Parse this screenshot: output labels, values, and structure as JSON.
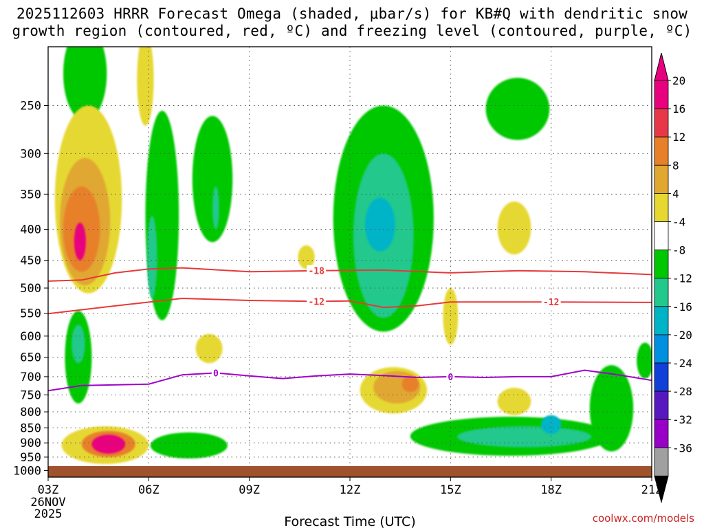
{
  "title_line1": "2025112603 HRRR Forecast Omega (shaded, μbar/s) for KB#Q with dendritic snow",
  "title_line2": "growth region (contoured, red, ºC) and freezing level (contoured, purple, ºC)",
  "credit": "coolwx.com/models",
  "chart_data": {
    "type": "heatmap",
    "title": "2025112603 HRRR Forecast Omega (shaded, μbar/s) for KB#Q with dendritic snow growth region (contoured, red, ºC) and freezing level (contoured, purple, ºC)",
    "xlabel": "Forecast Time (UTC)",
    "x_range_hours": [
      3,
      21
    ],
    "x_ticks": [
      {
        "hour": 3,
        "label": "03Z"
      },
      {
        "hour": 6,
        "label": "06Z"
      },
      {
        "hour": 9,
        "label": "09Z"
      },
      {
        "hour": 12,
        "label": "12Z"
      },
      {
        "hour": 15,
        "label": "15Z"
      },
      {
        "hour": 18,
        "label": "18Z"
      },
      {
        "hour": 21,
        "label": "21Z"
      }
    ],
    "x_date_labels": [
      "26NOV",
      "2025"
    ],
    "y_axis": "pressure (mb), log scale",
    "y_range_mb": [
      1025,
      200
    ],
    "y_ticks": [
      250,
      300,
      350,
      400,
      450,
      500,
      550,
      600,
      650,
      700,
      750,
      800,
      850,
      900,
      950,
      1000
    ],
    "colorbar": {
      "unit": "μbar/s",
      "labels": [
        "20",
        "16",
        "12",
        "8",
        "4",
        "-4",
        "-8",
        "-12",
        "-16",
        "-20",
        "-24",
        "-28",
        "-32",
        "-36"
      ],
      "levels": [
        20,
        16,
        12,
        8,
        4,
        -4,
        -8,
        -12,
        -16,
        -20,
        -24,
        -28,
        -32,
        -36
      ],
      "colors": [
        "#e8007f",
        "#e83848",
        "#e8802a",
        "#e0a830",
        "#e6d830",
        "#ffffff",
        "#00c800",
        "#22c88c",
        "#00b4c8",
        "#0090e0",
        "#1040d8",
        "#5818c0",
        "#9800c8",
        "#a0a0a0"
      ],
      "top_arrow_color": "#e8007f",
      "bottom_arrow_color": "#000000"
    },
    "omega_areas": [
      {
        "name": "rising-motion-high-left",
        "color": "#00c800",
        "center_hour": 4.1,
        "center_mb": 225,
        "width_hours": 1.3,
        "height_mb": 80
      },
      {
        "name": "rising-motion-left-mid",
        "color": "#00c800",
        "center_hour": 3.9,
        "center_mb": 660,
        "width_hours": 0.8,
        "height_mb": 230
      },
      {
        "name": "rising-motion-left-mid-core",
        "color": "#22c88c",
        "center_hour": 3.9,
        "center_mb": 620,
        "width_hours": 0.4,
        "height_mb": 90
      },
      {
        "name": "rising-motion-06z-column",
        "color": "#00c800",
        "center_hour": 6.4,
        "center_mb": 410,
        "width_hours": 1.0,
        "height_mb": 310
      },
      {
        "name": "rising-motion-06z-core",
        "color": "#22c88c",
        "center_hour": 6.1,
        "center_mb": 450,
        "width_hours": 0.3,
        "height_mb": 140
      },
      {
        "name": "rising-motion-08z",
        "color": "#00c800",
        "center_hour": 7.9,
        "center_mb": 340,
        "width_hours": 1.2,
        "height_mb": 160
      },
      {
        "name": "rising-motion-08z-core",
        "color": "#22c88c",
        "center_hour": 8.0,
        "center_mb": 370,
        "width_hours": 0.2,
        "height_mb": 60
      },
      {
        "name": "rising-motion-12z-plume",
        "color": "#00c800",
        "center_hour": 13.0,
        "center_mb": 420,
        "width_hours": 3.0,
        "height_mb": 340
      },
      {
        "name": "rising-motion-12z-core",
        "color": "#22c88c",
        "center_hour": 13.0,
        "center_mb": 430,
        "width_hours": 1.8,
        "height_mb": 260
      },
      {
        "name": "rising-motion-12z-inner",
        "color": "#00b4c8",
        "center_hour": 12.9,
        "center_mb": 395,
        "width_hours": 0.9,
        "height_mb": 80
      },
      {
        "name": "rising-motion-17z-box",
        "color": "#00c800",
        "center_hour": 17.0,
        "center_mb": 255,
        "width_hours": 1.9,
        "height_mb": 60
      },
      {
        "name": "rising-motion-low-18z",
        "color": "#00c800",
        "center_hour": 16.8,
        "center_mb": 880,
        "width_hours": 6.0,
        "height_mb": 130
      },
      {
        "name": "rising-motion-low-18z-core",
        "color": "#22c88c",
        "center_hour": 17.2,
        "center_mb": 880,
        "width_hours": 4.0,
        "height_mb": 70
      },
      {
        "name": "rising-motion-18z-inner",
        "color": "#00b4c8",
        "center_hour": 18.0,
        "center_mb": 840,
        "width_hours": 0.6,
        "height_mb": 60
      },
      {
        "name": "rising-motion-low-07z",
        "color": "#00c800",
        "center_hour": 7.2,
        "center_mb": 910,
        "width_hours": 2.3,
        "height_mb": 90
      },
      {
        "name": "rising-motion-20z",
        "color": "#00c800",
        "center_hour": 19.8,
        "center_mb": 800,
        "width_hours": 1.3,
        "height_mb": 260
      },
      {
        "name": "rising-motion-21z-edge",
        "color": "#00c800",
        "center_hour": 20.8,
        "center_mb": 660,
        "width_hours": 0.5,
        "height_mb": 90
      }
    ],
    "sinking_areas": [
      {
        "name": "sinking-left-column",
        "color": "#e6d830",
        "center_hour": 4.2,
        "center_mb": 380,
        "width_hours": 2.0,
        "height_mb": 260
      },
      {
        "name": "sinking-left-column-mid",
        "color": "#e0a830",
        "center_hour": 4.1,
        "center_mb": 400,
        "width_hours": 1.5,
        "height_mb": 190
      },
      {
        "name": "sinking-left-column-strong",
        "color": "#e8802a",
        "center_hour": 4.0,
        "center_mb": 405,
        "width_hours": 1.1,
        "height_mb": 130
      },
      {
        "name": "sinking-left-column-max",
        "color": "#e8007f",
        "center_hour": 3.95,
        "center_mb": 420,
        "width_hours": 0.35,
        "height_mb": 60
      },
      {
        "name": "sinking-low-left",
        "color": "#e6d830",
        "center_hour": 4.7,
        "center_mb": 910,
        "width_hours": 2.6,
        "height_mb": 130
      },
      {
        "name": "sinking-low-left-mid",
        "color": "#e8802a",
        "center_hour": 4.8,
        "center_mb": 905,
        "width_hours": 1.6,
        "height_mb": 90
      },
      {
        "name": "sinking-low-left-max",
        "color": "#e8007f",
        "center_hour": 4.8,
        "center_mb": 905,
        "width_hours": 1.0,
        "height_mb": 65
      },
      {
        "name": "sinking-upper-05z",
        "color": "#e6d830",
        "center_hour": 5.9,
        "center_mb": 230,
        "width_hours": 0.5,
        "height_mb": 80
      },
      {
        "name": "sinking-13z",
        "color": "#e6d830",
        "center_hour": 13.3,
        "center_mb": 740,
        "width_hours": 2.0,
        "height_mb": 130
      },
      {
        "name": "sinking-13z-core",
        "color": "#e0a830",
        "center_hour": 13.4,
        "center_mb": 730,
        "width_hours": 1.4,
        "height_mb": 90
      },
      {
        "name": "sinking-13z-max",
        "color": "#e8802a",
        "center_hour": 13.8,
        "center_mb": 720,
        "width_hours": 0.5,
        "height_mb": 45
      },
      {
        "name": "sinking-17z-upper",
        "color": "#e6d830",
        "center_hour": 16.9,
        "center_mb": 400,
        "width_hours": 1.0,
        "height_mb": 80
      },
      {
        "name": "sinking-17z-low",
        "color": "#e6d830",
        "center_hour": 16.9,
        "center_mb": 770,
        "width_hours": 1.0,
        "height_mb": 80
      },
      {
        "name": "sinking-15z-small",
        "color": "#e6d830",
        "center_hour": 15.0,
        "center_mb": 560,
        "width_hours": 0.45,
        "height_mb": 120
      },
      {
        "name": "sinking-08z-small",
        "color": "#e6d830",
        "center_hour": 7.8,
        "center_mb": 630,
        "width_hours": 0.8,
        "height_mb": 70
      },
      {
        "name": "sinking-11z-small",
        "color": "#e6d830",
        "center_hour": 10.7,
        "center_mb": 445,
        "width_hours": 0.5,
        "height_mb": 40
      }
    ],
    "contours": [
      {
        "name": "isotherm-minus-18",
        "label": "-18",
        "color": "#e83838",
        "label_hour": 11.0,
        "points": [
          [
            3.0,
            487
          ],
          [
            4.0,
            485
          ],
          [
            5.0,
            472
          ],
          [
            6.0,
            465
          ],
          [
            7.0,
            463
          ],
          [
            9.0,
            470
          ],
          [
            11.0,
            468
          ],
          [
            13.0,
            467
          ],
          [
            15.0,
            472
          ],
          [
            17.0,
            468
          ],
          [
            19.0,
            470
          ],
          [
            21.0,
            475
          ]
        ]
      },
      {
        "name": "isotherm-minus-12",
        "label": "-12",
        "color": "#e83838",
        "label_hour": 11.0,
        "points": [
          [
            3.0,
            551
          ],
          [
            5.0,
            535
          ],
          [
            7.0,
            520
          ],
          [
            9.0,
            524
          ],
          [
            11.0,
            526
          ],
          [
            12.0,
            525
          ],
          [
            13.0,
            538
          ],
          [
            14.0,
            535
          ],
          [
            15.0,
            527
          ],
          [
            18.0,
            527
          ],
          [
            21.0,
            528
          ]
        ]
      },
      {
        "name": "freezing-level",
        "label": "0",
        "color": "#a000c8",
        "label_hour": 8.0,
        "points": [
          [
            3.0,
            738
          ],
          [
            4.0,
            724
          ],
          [
            6.0,
            720
          ],
          [
            7.0,
            695
          ],
          [
            8.0,
            690
          ],
          [
            9.0,
            698
          ],
          [
            10.0,
            705
          ],
          [
            11.0,
            698
          ],
          [
            12.0,
            693
          ],
          [
            13.0,
            697
          ],
          [
            14.0,
            702
          ],
          [
            15.0,
            700
          ],
          [
            16.0,
            702
          ],
          [
            17.0,
            700
          ],
          [
            18.0,
            700
          ],
          [
            19.0,
            683
          ],
          [
            20.0,
            695
          ],
          [
            21.0,
            710
          ]
        ]
      }
    ],
    "contour_labels_extra": [
      {
        "series": "isotherm-minus-12",
        "label": "-12",
        "hour": 18.0
      },
      {
        "series": "freezing-level",
        "label": "0",
        "hour": 15.0
      }
    ],
    "terrain_color": "#a0522d"
  }
}
